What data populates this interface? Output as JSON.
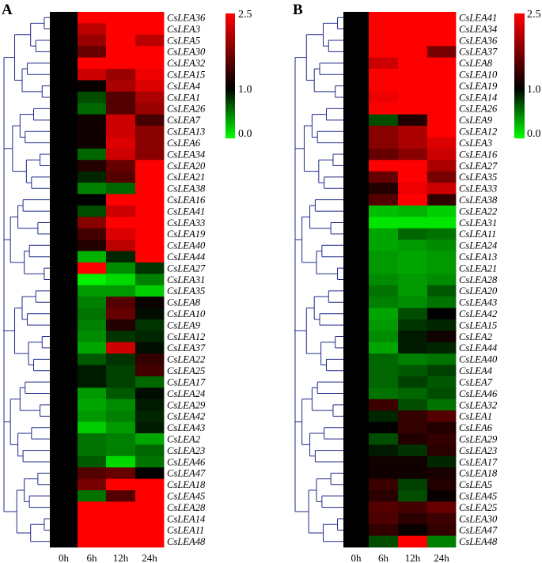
{
  "chart_data": [
    {
      "type": "heatmap",
      "panel": "A",
      "columns": [
        "0h",
        "6h",
        "12h",
        "24h"
      ],
      "rows": [
        "CsLEA36",
        "CsLEA3",
        "CsLEA5",
        "CsLEA30",
        "CsLEA32",
        "CsLEA15",
        "CsLEA4",
        "CsLEA1",
        "CsLEA26",
        "CsLEA7",
        "CsLEA13",
        "CsLEA6",
        "CsLEA34",
        "CsLEA20",
        "CsLEA21",
        "CsLEA38",
        "CsLEA16",
        "CsLEA41",
        "CsLEA33",
        "CsLEA19",
        "CsLEA40",
        "CsLEA44",
        "CsLEA27",
        "CsLEA31",
        "CsLEA35",
        "CsLEA8",
        "CsLEA10",
        "CsLEA9",
        "CsLEA12",
        "CsLEA37",
        "CsLEA22",
        "CsLEA25",
        "CsLEA17",
        "CsLEA24",
        "CsLEA29",
        "CsLEA42",
        "CsLEA43",
        "CsLEA2",
        "CsLEA23",
        "CsLEA46",
        "CsLEA47",
        "CsLEA18",
        "CsLEA45",
        "CsLEA28",
        "CsLEA14",
        "CsLEA11",
        "CsLEA48"
      ],
      "values": [
        [
          1.0,
          2.5,
          2.5,
          2.5
        ],
        [
          1.0,
          2.1,
          2.5,
          2.5
        ],
        [
          1.0,
          1.9,
          2.5,
          2.1
        ],
        [
          1.0,
          1.6,
          2.5,
          2.5
        ],
        [
          1.0,
          2.5,
          2.5,
          2.5
        ],
        [
          1.0,
          2.2,
          1.9,
          2.4
        ],
        [
          1.0,
          1.05,
          2.0,
          2.3
        ],
        [
          1.0,
          0.7,
          1.5,
          2.0
        ],
        [
          1.0,
          0.6,
          1.5,
          1.9
        ],
        [
          1.0,
          1.1,
          2.2,
          1.4
        ],
        [
          1.0,
          1.1,
          2.2,
          1.8
        ],
        [
          1.0,
          1.1,
          2.3,
          1.8
        ],
        [
          1.0,
          0.6,
          2.2,
          1.8
        ],
        [
          1.0,
          1.2,
          1.6,
          2.5
        ],
        [
          1.0,
          0.85,
          1.5,
          2.5
        ],
        [
          1.0,
          0.5,
          0.6,
          2.5
        ],
        [
          1.0,
          1.0,
          2.5,
          2.5
        ],
        [
          1.0,
          0.7,
          2.2,
          2.5
        ],
        [
          1.0,
          1.8,
          2.5,
          2.5
        ],
        [
          1.0,
          1.4,
          2.3,
          2.5
        ],
        [
          1.0,
          1.2,
          2.1,
          2.5
        ],
        [
          1.0,
          0.3,
          0.85,
          2.5
        ],
        [
          1.0,
          2.5,
          0.45,
          0.8
        ],
        [
          1.0,
          0.05,
          0.15,
          0.5
        ],
        [
          1.0,
          0.4,
          0.4,
          0.2
        ],
        [
          1.0,
          0.5,
          1.5,
          1.05
        ],
        [
          1.0,
          0.55,
          1.6,
          0.95
        ],
        [
          1.0,
          0.5,
          1.2,
          0.8
        ],
        [
          1.0,
          0.45,
          0.8,
          0.85
        ],
        [
          1.0,
          0.35,
          2.2,
          0.95
        ],
        [
          1.0,
          0.65,
          0.8,
          1.3
        ],
        [
          1.0,
          0.9,
          0.75,
          1.4
        ],
        [
          1.0,
          0.9,
          0.75,
          0.6
        ],
        [
          1.0,
          0.4,
          0.65,
          0.95
        ],
        [
          1.0,
          0.35,
          0.45,
          0.9
        ],
        [
          1.0,
          0.4,
          0.5,
          0.85
        ],
        [
          1.0,
          0.2,
          0.4,
          0.9
        ],
        [
          1.0,
          0.55,
          0.5,
          0.35
        ],
        [
          1.0,
          0.55,
          0.5,
          0.6
        ],
        [
          1.0,
          0.65,
          0.15,
          0.55
        ],
        [
          1.0,
          1.5,
          1.6,
          1.0
        ],
        [
          1.0,
          1.7,
          2.5,
          2.5
        ],
        [
          1.0,
          0.55,
          1.5,
          2.5
        ],
        [
          1.0,
          2.5,
          2.5,
          2.5
        ],
        [
          1.0,
          2.5,
          2.5,
          2.5
        ],
        [
          1.0,
          2.5,
          2.5,
          2.5
        ],
        [
          1.0,
          2.5,
          2.5,
          2.5
        ]
      ],
      "color_scale": {
        "min": 0.0,
        "mid": 1.0,
        "max": 2.5,
        "low_color": "#00ff00",
        "mid_color": "#000000",
        "high_color": "#ff0000",
        "ticks": [
          "2.5",
          "1.0",
          "0.0"
        ]
      }
    },
    {
      "type": "heatmap",
      "panel": "B",
      "columns": [
        "0h",
        "6h",
        "12h",
        "24h"
      ],
      "rows": [
        "CsLEA41",
        "CsLEA34",
        "CsLEA36",
        "CsLEA37",
        "CsLEA8",
        "CsLEA10",
        "CsLEA19",
        "CsLEA14",
        "CsLEA26",
        "CsLEA9",
        "CsLEA12",
        "CsLEA3",
        "CsLEA16",
        "CsLEA27",
        "CsLEA35",
        "CsLEA33",
        "CsLEA38",
        "CsLEA22",
        "CsLEA31",
        "CsLEA11",
        "CsLEA24",
        "CsLEA13",
        "CsLEA21",
        "CsLEA28",
        "CsLEA20",
        "CsLEA43",
        "CsLEA42",
        "CsLEA15",
        "CsLEA2",
        "CsLEA44",
        "CsLEA40",
        "CsLEA4",
        "CsLEA7",
        "CsLEA46",
        "CsLEA32",
        "CsLEA1",
        "CsLEA6",
        "CsLEA29",
        "CsLEA23",
        "CsLEA17",
        "CsLEA18",
        "CsLEA5",
        "CsLEA45",
        "CsLEA25",
        "CsLEA30",
        "CsLEA47",
        "CsLEA48"
      ],
      "values": [
        [
          1.0,
          2.5,
          2.5,
          2.5
        ],
        [
          1.0,
          2.5,
          2.5,
          2.5
        ],
        [
          1.0,
          2.5,
          2.5,
          2.5
        ],
        [
          1.0,
          2.5,
          2.5,
          1.7
        ],
        [
          1.0,
          2.2,
          2.5,
          2.5
        ],
        [
          1.0,
          2.5,
          2.5,
          2.5
        ],
        [
          1.0,
          2.5,
          2.5,
          2.5
        ],
        [
          1.0,
          2.4,
          2.5,
          2.5
        ],
        [
          1.0,
          2.5,
          2.5,
          2.5
        ],
        [
          1.0,
          0.7,
          1.2,
          2.5
        ],
        [
          1.0,
          1.8,
          2.0,
          2.5
        ],
        [
          1.0,
          1.8,
          2.0,
          2.3
        ],
        [
          1.0,
          1.6,
          1.8,
          2.2
        ],
        [
          1.0,
          2.5,
          2.5,
          2.0
        ],
        [
          1.0,
          1.6,
          2.5,
          1.7
        ],
        [
          1.0,
          1.2,
          2.4,
          2.2
        ],
        [
          1.0,
          1.5,
          2.5,
          1.3
        ],
        [
          1.0,
          0.25,
          0.3,
          0.2
        ],
        [
          1.0,
          0.1,
          0.1,
          0.1
        ],
        [
          1.0,
          0.35,
          0.6,
          0.55
        ],
        [
          1.0,
          0.35,
          0.4,
          0.45
        ],
        [
          1.0,
          0.4,
          0.35,
          0.4
        ],
        [
          1.0,
          0.4,
          0.35,
          0.4
        ],
        [
          1.0,
          0.45,
          0.4,
          0.45
        ],
        [
          1.0,
          0.55,
          0.4,
          0.65
        ],
        [
          1.0,
          0.5,
          0.45,
          0.55
        ],
        [
          1.0,
          0.35,
          0.7,
          1.0
        ],
        [
          1.0,
          0.4,
          0.8,
          0.85
        ],
        [
          1.0,
          0.45,
          0.9,
          1.1
        ],
        [
          1.0,
          0.35,
          0.9,
          0.85
        ],
        [
          1.0,
          0.6,
          0.5,
          0.55
        ],
        [
          1.0,
          0.6,
          0.65,
          0.75
        ],
        [
          1.0,
          0.6,
          0.75,
          0.65
        ],
        [
          1.0,
          0.55,
          0.6,
          0.7
        ],
        [
          1.0,
          1.35,
          0.7,
          0.55
        ],
        [
          1.0,
          0.85,
          1.3,
          1.5
        ],
        [
          1.0,
          1.0,
          1.3,
          1.2
        ],
        [
          1.0,
          0.7,
          1.2,
          1.3
        ],
        [
          1.0,
          0.9,
          0.8,
          1.25
        ],
        [
          1.0,
          1.1,
          1.1,
          0.85
        ],
        [
          1.0,
          1.1,
          1.1,
          1.15
        ],
        [
          1.0,
          1.35,
          0.75,
          1.2
        ],
        [
          1.0,
          1.25,
          0.7,
          1.05
        ],
        [
          1.0,
          1.5,
          1.4,
          1.6
        ],
        [
          1.0,
          1.45,
          1.25,
          1.35
        ],
        [
          1.0,
          1.3,
          1.05,
          1.3
        ],
        [
          1.0,
          0.7,
          2.5,
          0.5
        ]
      ],
      "color_scale": {
        "min": 0.0,
        "mid": 1.0,
        "max": 2.5,
        "low_color": "#00ff00",
        "mid_color": "#000000",
        "high_color": "#ff0000",
        "ticks": [
          "2.5",
          "1.0",
          "0.0"
        ]
      }
    }
  ],
  "dendrogram_color": "#1f2a8a"
}
